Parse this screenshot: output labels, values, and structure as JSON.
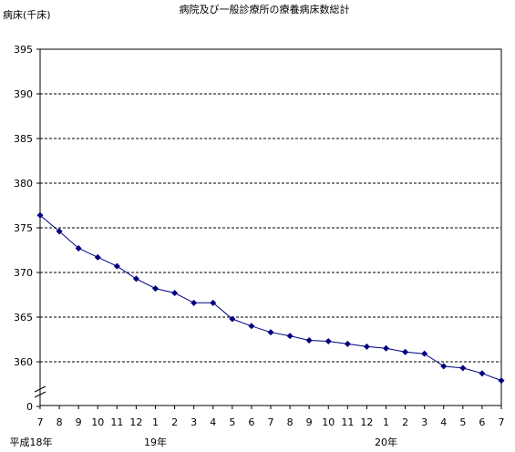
{
  "chart_data": {
    "type": "line",
    "title": "病院及び一般診療所の療養病床数総計",
    "ylabel": "病床(千床)",
    "ylim": [
      355,
      395
    ],
    "yticks": [
      "395",
      "390",
      "385",
      "380",
      "375",
      "370",
      "365",
      "360",
      "0"
    ],
    "axis_break": true,
    "grid": "dashed horizontal",
    "x": [
      "7",
      "8",
      "9",
      "10",
      "11",
      "12",
      "1",
      "2",
      "3",
      "4",
      "5",
      "6",
      "7",
      "8",
      "9",
      "10",
      "11",
      "12",
      "1",
      "2",
      "3",
      "4",
      "5",
      "6",
      "7"
    ],
    "year_labels": [
      {
        "label": "平成18年",
        "at_index": 0
      },
      {
        "label": "19年",
        "at_index": 6
      },
      {
        "label": "20年",
        "at_index": 18
      }
    ],
    "series": [
      {
        "values": [
          376.4,
          374.6,
          372.7,
          371.7,
          370.7,
          369.3,
          368.2,
          367.7,
          366.6,
          366.6,
          364.8,
          364.0,
          363.3,
          362.9,
          362.4,
          362.3,
          362.0,
          361.7,
          361.5,
          361.1,
          360.9,
          359.5,
          359.3,
          358.7,
          357.9
        ]
      }
    ],
    "colors": {
      "series": "#000080",
      "grid": "#000000",
      "axis": "#000000"
    }
  }
}
